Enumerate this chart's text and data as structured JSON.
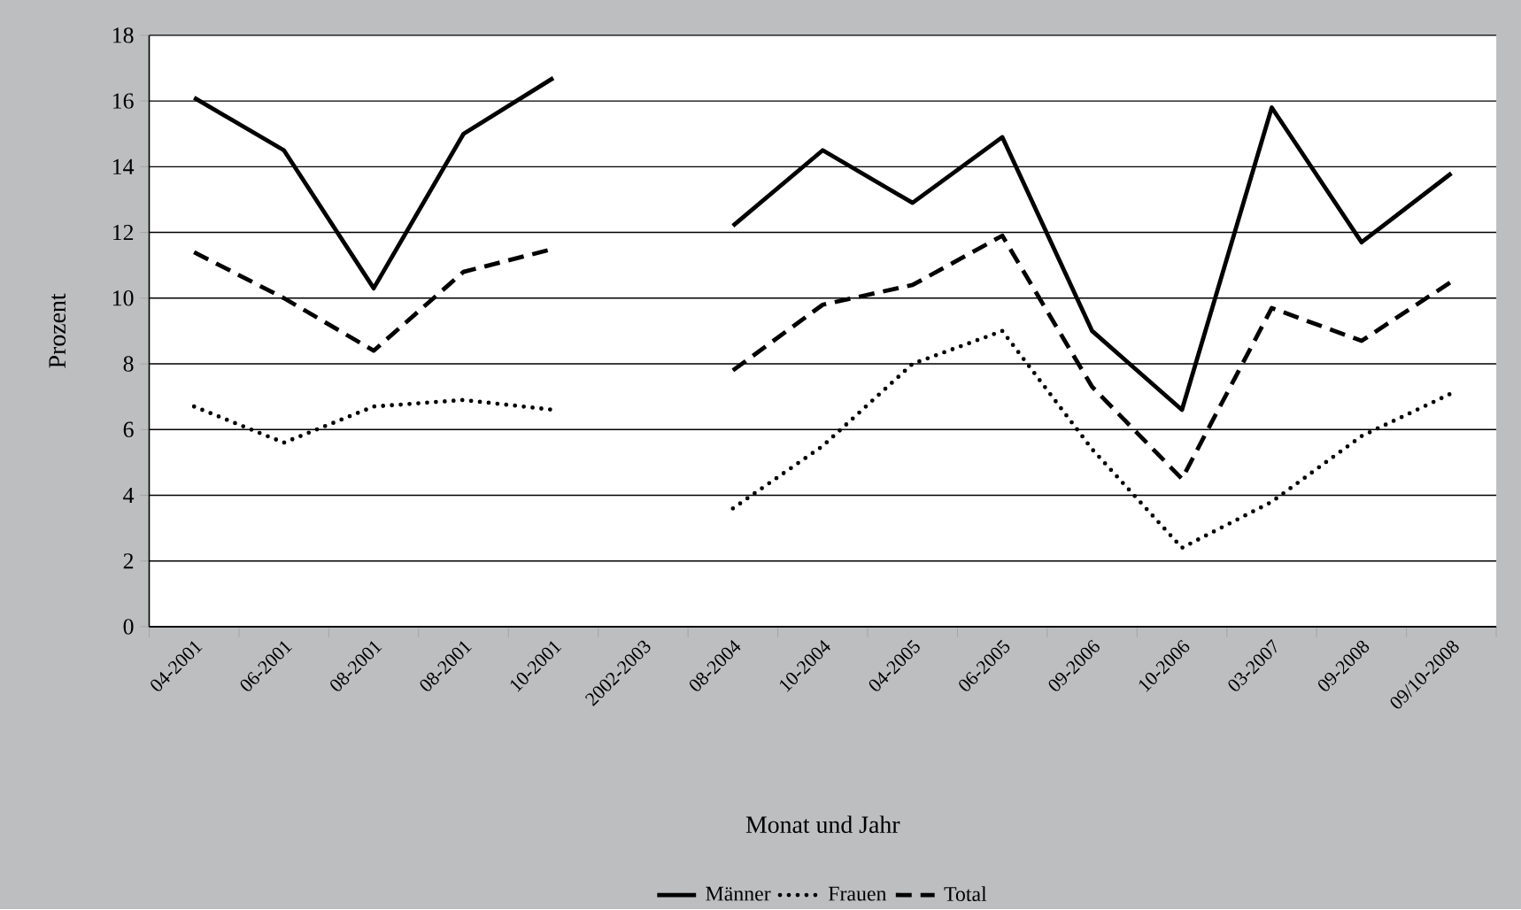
{
  "chart_data": {
    "type": "line",
    "xlabel": "Monat und Jahr",
    "ylabel": "Prozent",
    "categories": [
      "04-2001",
      "06-2001",
      "08-2001",
      "08-2001",
      "10-2001",
      "2002-2003",
      "08-2004",
      "10-2004",
      "04-2005",
      "06-2005",
      "09-2006",
      "10-2006",
      "03-2007",
      "09-2008",
      "09/10-2008"
    ],
    "series": [
      {
        "name": "Männer",
        "color": "#000000",
        "line_style": "solid",
        "values": [
          16.1,
          14.5,
          10.3,
          15.0,
          16.7,
          null,
          12.2,
          14.5,
          12.9,
          14.9,
          9.0,
          6.6,
          15.8,
          11.7,
          13.8
        ]
      },
      {
        "name": "Frauen",
        "color": "#000000",
        "line_style": "dotted",
        "values": [
          6.7,
          5.6,
          6.7,
          6.9,
          6.6,
          null,
          3.6,
          5.5,
          8.0,
          9.0,
          5.4,
          2.4,
          3.8,
          5.8,
          7.1
        ]
      },
      {
        "name": "Total",
        "color": "#000000",
        "line_style": "dashed",
        "values": [
          11.4,
          10.0,
          8.4,
          10.8,
          11.5,
          null,
          7.8,
          9.8,
          10.4,
          11.9,
          7.3,
          4.5,
          9.7,
          8.7,
          10.5
        ]
      }
    ],
    "ylim": [
      0,
      18
    ],
    "yticks": [
      0,
      2,
      4,
      6,
      8,
      10,
      12,
      14,
      16,
      18
    ],
    "grid": "y",
    "legend": "bottom",
    "marker": "none"
  }
}
